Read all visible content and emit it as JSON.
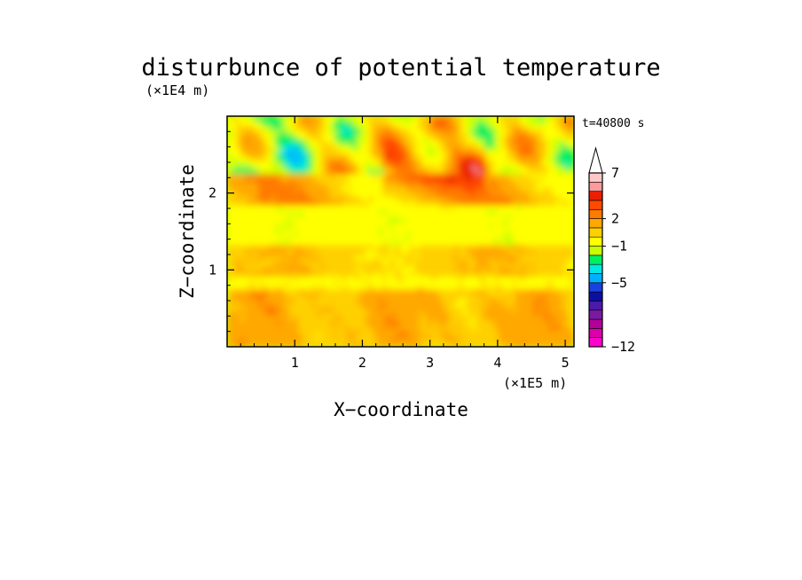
{
  "chart_data": {
    "type": "heatmap",
    "title": "disturbunce of potential temperature",
    "time_label": "t=40800 s",
    "xlabel": "X−coordinate",
    "ylabel": "Z−coordinate",
    "x_unit": "(×1E5 m)",
    "y_unit": "(×1E4 m)",
    "xlim": [
      0,
      5.13
    ],
    "ylim": [
      0,
      3.0
    ],
    "x_ticks": [
      "1",
      "2",
      "3",
      "4",
      "5"
    ],
    "y_ticks": [
      "1",
      "2"
    ],
    "colorbar": {
      "levels": [
        -12,
        -11,
        -10,
        -9,
        -8,
        -7,
        -6,
        -5,
        -4,
        -3,
        -2,
        -1,
        0,
        1,
        2,
        3,
        4,
        5,
        6,
        7,
        8,
        9
      ],
      "tick_labels": [
        "7",
        "2",
        "−1",
        "−5",
        "−12"
      ],
      "tick_values": [
        7,
        2,
        -1,
        -5,
        -12
      ],
      "colors": [
        "#ff00cc",
        "#dd00aa",
        "#b30099",
        "#7a1aa0",
        "#4a1aa8",
        "#0a10a0",
        "#1a40e0",
        "#00b0ff",
        "#00e8e0",
        "#00f060",
        "#c8ff00",
        "#ffff00",
        "#ffd000",
        "#ffa800",
        "#ff7a00",
        "#ff4a00",
        "#e82000",
        "#ff9a9a",
        "#ffc8c8"
      ],
      "extend": "max"
    }
  }
}
